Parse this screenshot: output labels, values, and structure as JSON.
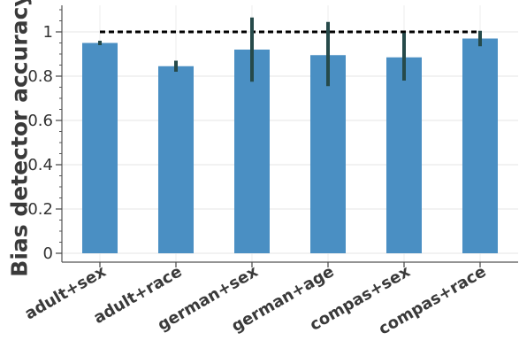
{
  "chart_data": {
    "type": "bar",
    "title": "",
    "xlabel": "",
    "ylabel": "Bias detector accuracy",
    "categories": [
      "adult+sex",
      "adult+race",
      "german+sex",
      "german+age",
      "compas+sex",
      "compas+race"
    ],
    "values": [
      0.95,
      0.845,
      0.92,
      0.895,
      0.885,
      0.97
    ],
    "error_low": [
      0.94,
      0.82,
      0.775,
      0.755,
      0.78,
      0.935
    ],
    "error_high": [
      0.96,
      0.87,
      1.065,
      1.045,
      0.995,
      1.005
    ],
    "reference_line": 1.0,
    "ylim": [
      -0.04,
      1.12
    ],
    "yticks": [
      0,
      0.2,
      0.4,
      0.6,
      0.8,
      1
    ],
    "yticklabels": [
      "0",
      "0.2",
      "0.4",
      "0.6",
      "0.8",
      "1"
    ],
    "grid": true,
    "bar_color": "#4a8fc3",
    "error_color": "#264a4a",
    "reference_color": "#000000"
  }
}
